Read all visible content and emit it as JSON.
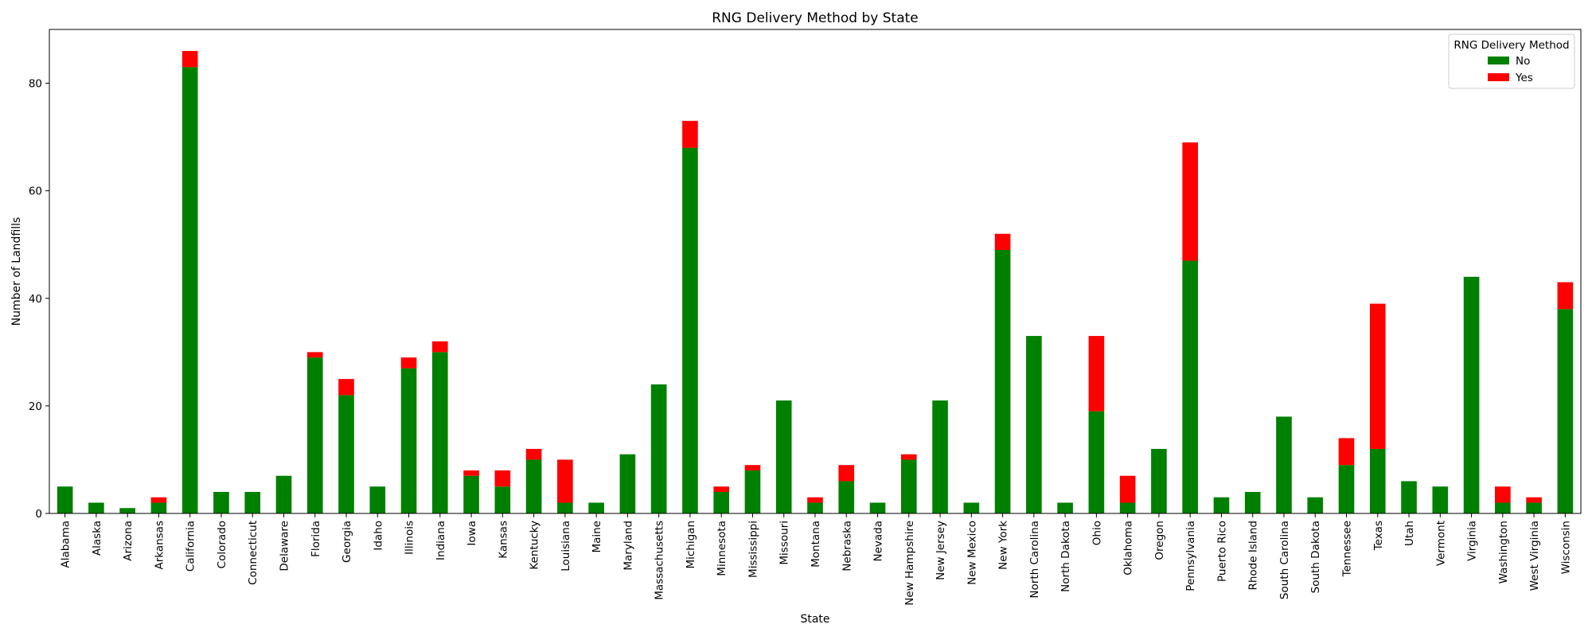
{
  "chart_data": {
    "type": "bar",
    "stacked": true,
    "title": "RNG Delivery Method by State",
    "xlabel": "State",
    "ylabel": "Number of Landfills",
    "ylim": [
      0,
      90
    ],
    "yticks": [
      0,
      20,
      40,
      60,
      80
    ],
    "grid": false,
    "legend": {
      "title": "RNG Delivery Method",
      "placement": "top-right"
    },
    "categories": [
      "Alabama",
      "Alaska",
      "Arizona",
      "Arkansas",
      "California",
      "Colorado",
      "Connecticut",
      "Delaware",
      "Florida",
      "Georgia",
      "Idaho",
      "Illinois",
      "Indiana",
      "Iowa",
      "Kansas",
      "Kentucky",
      "Louisiana",
      "Maine",
      "Maryland",
      "Massachusetts",
      "Michigan",
      "Minnesota",
      "Mississippi",
      "Missouri",
      "Montana",
      "Nebraska",
      "Nevada",
      "New Hampshire",
      "New Jersey",
      "New Mexico",
      "New York",
      "North Carolina",
      "North Dakota",
      "Ohio",
      "Oklahoma",
      "Oregon",
      "Pennsylvania",
      "Puerto Rico",
      "Rhode Island",
      "South Carolina",
      "South Dakota",
      "Tennessee",
      "Texas",
      "Utah",
      "Vermont",
      "Virginia",
      "Washington",
      "West Virginia",
      "Wisconsin"
    ],
    "series": [
      {
        "name": "No",
        "color": "#008000",
        "values": [
          5,
          2,
          1,
          2,
          83,
          4,
          4,
          7,
          29,
          22,
          5,
          27,
          30,
          7,
          5,
          10,
          2,
          2,
          11,
          24,
          68,
          4,
          8,
          21,
          2,
          6,
          2,
          10,
          21,
          2,
          49,
          33,
          2,
          19,
          2,
          12,
          47,
          3,
          4,
          18,
          3,
          9,
          12,
          6,
          5,
          44,
          2,
          2,
          38
        ]
      },
      {
        "name": "Yes",
        "color": "#ff0000",
        "values": [
          0,
          0,
          0,
          1,
          3,
          0,
          0,
          0,
          1,
          3,
          0,
          2,
          2,
          1,
          3,
          2,
          8,
          0,
          0,
          0,
          5,
          1,
          1,
          0,
          1,
          3,
          0,
          1,
          0,
          0,
          3,
          0,
          0,
          14,
          5,
          0,
          22,
          0,
          0,
          0,
          0,
          5,
          27,
          0,
          0,
          0,
          3,
          1,
          5
        ]
      }
    ]
  }
}
